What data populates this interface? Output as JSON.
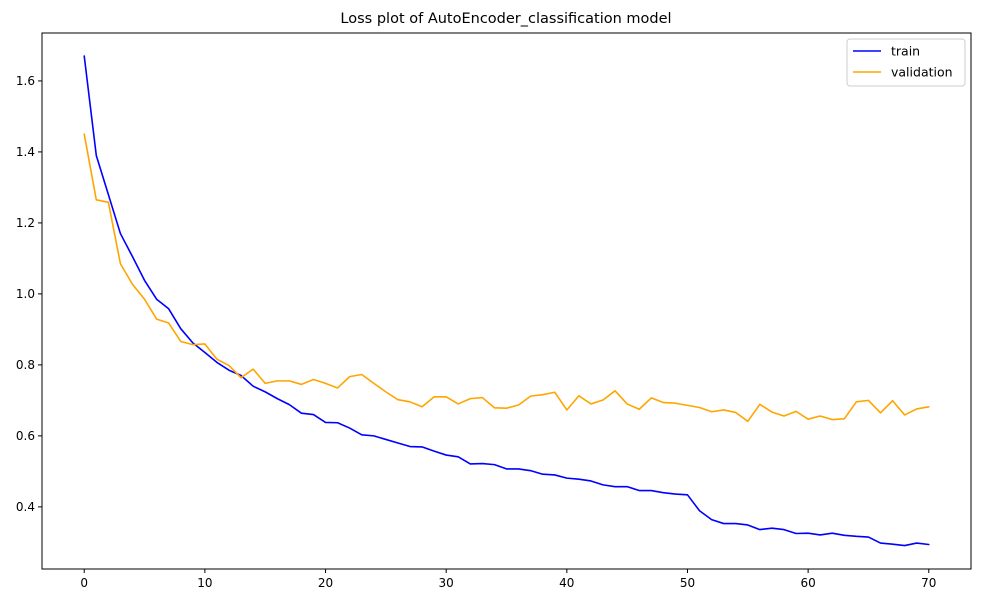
{
  "chart_data": {
    "type": "line",
    "title": "Loss plot of AutoEncoder_classification model",
    "xlabel": "",
    "ylabel": "",
    "xlim": [
      -3.5,
      73.5
    ],
    "ylim": [
      0.225,
      1.735
    ],
    "xticks": [
      0,
      10,
      20,
      30,
      40,
      50,
      60,
      70
    ],
    "yticks": [
      0.4,
      0.6,
      0.8,
      1.0,
      1.2,
      1.4,
      1.6
    ],
    "ytick_labels": [
      "0.4",
      "0.6",
      "0.8",
      "1.0",
      "1.2",
      "1.4",
      "1.6"
    ],
    "grid": false,
    "legend_position": "top-right",
    "x": [
      0,
      1,
      2,
      3,
      4,
      5,
      6,
      7,
      8,
      9,
      10,
      11,
      12,
      13,
      14,
      15,
      16,
      17,
      18,
      19,
      20,
      21,
      22,
      23,
      24,
      25,
      26,
      27,
      28,
      29,
      30,
      31,
      32,
      33,
      34,
      35,
      36,
      37,
      38,
      39,
      40,
      41,
      42,
      43,
      44,
      45,
      46,
      47,
      48,
      49,
      50,
      51,
      52,
      53,
      54,
      55,
      56,
      57,
      58,
      59,
      60,
      61,
      62,
      63,
      64,
      65,
      66,
      67,
      68,
      69,
      70
    ],
    "series": [
      {
        "name": "train",
        "color": "#0000ff",
        "values": [
          1.67,
          1.39,
          1.28,
          1.17,
          1.105,
          1.038,
          0.985,
          0.958,
          0.902,
          0.862,
          0.835,
          0.807,
          0.785,
          0.77,
          0.74,
          0.724,
          0.705,
          0.688,
          0.664,
          0.66,
          0.638,
          0.637,
          0.622,
          0.603,
          0.6,
          0.59,
          0.58,
          0.57,
          0.569,
          0.557,
          0.546,
          0.541,
          0.521,
          0.522,
          0.519,
          0.507,
          0.507,
          0.502,
          0.492,
          0.49,
          0.481,
          0.478,
          0.473,
          0.462,
          0.457,
          0.457,
          0.446,
          0.446,
          0.44,
          0.436,
          0.434,
          0.389,
          0.364,
          0.353,
          0.353,
          0.349,
          0.336,
          0.34,
          0.336,
          0.325,
          0.326,
          0.321,
          0.326,
          0.32,
          0.317,
          0.315,
          0.298,
          0.295,
          0.291,
          0.298,
          0.294
        ]
      },
      {
        "name": "validation",
        "color": "#ffa500",
        "values": [
          1.45,
          1.265,
          1.258,
          1.085,
          1.027,
          0.985,
          0.929,
          0.918,
          0.866,
          0.857,
          0.859,
          0.816,
          0.798,
          0.764,
          0.788,
          0.748,
          0.755,
          0.755,
          0.745,
          0.759,
          0.748,
          0.735,
          0.767,
          0.773,
          0.748,
          0.724,
          0.702,
          0.696,
          0.682,
          0.71,
          0.71,
          0.69,
          0.705,
          0.708,
          0.679,
          0.678,
          0.687,
          0.712,
          0.716,
          0.723,
          0.673,
          0.713,
          0.69,
          0.701,
          0.727,
          0.69,
          0.675,
          0.707,
          0.694,
          0.692,
          0.686,
          0.68,
          0.668,
          0.673,
          0.666,
          0.641,
          0.689,
          0.667,
          0.656,
          0.669,
          0.647,
          0.656,
          0.646,
          0.648,
          0.696,
          0.7,
          0.665,
          0.699,
          0.659,
          0.676,
          0.682
        ]
      }
    ]
  }
}
